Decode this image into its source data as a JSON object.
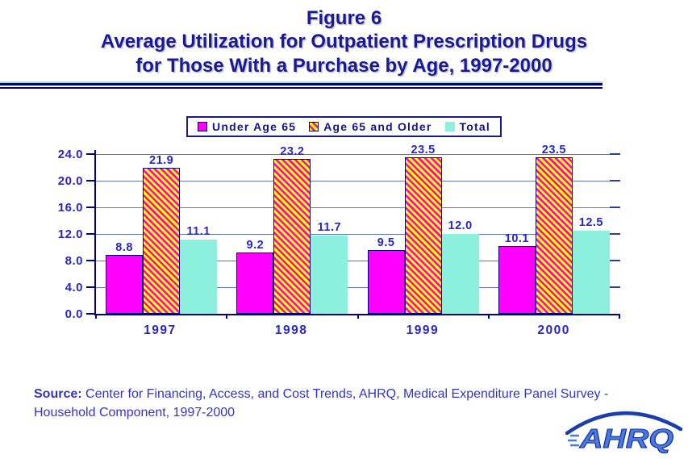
{
  "title": {
    "line1": "Figure 6",
    "line2": "Average Utilization for Outpatient Prescription Drugs",
    "line3": "for Those With a Purchase by Age, 1997-2000"
  },
  "legend": {
    "items": [
      {
        "label": "Under Age 65",
        "series_index": 0
      },
      {
        "label": "Age 65 and Older",
        "series_index": 1
      },
      {
        "label": "Total",
        "series_index": 2
      }
    ]
  },
  "chart_data": {
    "type": "bar",
    "title": "Average Utilization for Outpatient Prescription Drugs for Those With a Purchase by Age, 1997-2000",
    "categories": [
      "1997",
      "1998",
      "1999",
      "2000"
    ],
    "series": [
      {
        "name": "Under Age 65",
        "values": [
          8.8,
          9.2,
          9.5,
          10.1
        ],
        "color": "#ff00ff",
        "border": "#000080",
        "pattern": "solid"
      },
      {
        "name": "Age 65 and Older",
        "values": [
          21.9,
          23.2,
          23.5,
          23.5
        ],
        "color": "#ffff00",
        "stripe_color": "#ff00cc",
        "border": "#000080",
        "pattern": "diagonal-stripe"
      },
      {
        "name": "Total",
        "values": [
          11.1,
          11.7,
          12.0,
          12.5
        ],
        "color": "#8df0de",
        "border": "none",
        "pattern": "solid"
      }
    ],
    "xlabel": "",
    "ylabel": "",
    "ylim": [
      0,
      24
    ],
    "ytick_step": 4,
    "ytick_labels": [
      "0.0",
      "4.0",
      "8.0",
      "12.0",
      "16.0",
      "20.0",
      "24.0"
    ],
    "grid": "horizontal",
    "legend_position": "top-center",
    "value_labels": true
  },
  "source": {
    "label": "Source:",
    "text": " Center for Financing, Access, and Cost Trends, AHRQ, Medical Expenditure Panel Survey - Household Component, 1997-2000"
  },
  "logo": {
    "text": "AHRQ"
  },
  "colors": {
    "title_navy": "#1a1a99",
    "label_blue": "#2626c9",
    "axis_navy": "#000080",
    "grid_blue": "#6272c2",
    "source_blue": "#3333cc",
    "rule_light_blue": "#a8ccf4",
    "legend_border_navy": "#1a1a8c",
    "logo_blue": "#4a7ae0",
    "logo_outline_navy": "#14309c"
  }
}
